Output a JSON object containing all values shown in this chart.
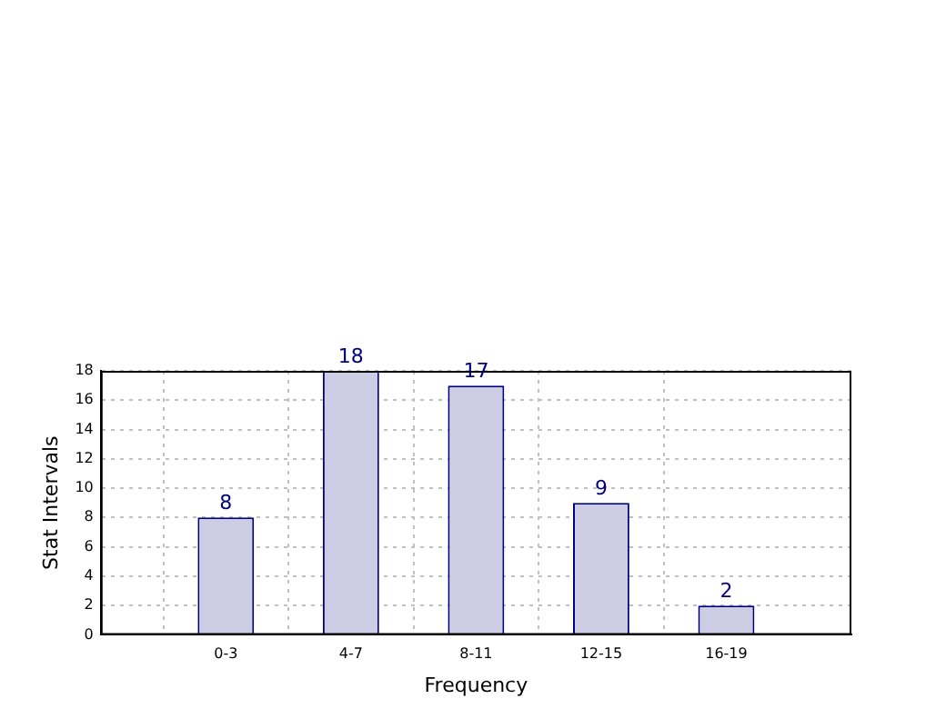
{
  "chart_data": {
    "type": "bar",
    "xlabel": "Frequency",
    "ylabel": "Stat Intervals",
    "categories": [
      "0-3",
      "4-7",
      "8-11",
      "12-15",
      "16-19"
    ],
    "values": [
      8,
      18,
      17,
      9,
      2
    ],
    "color": "#cccce4",
    "ylim": [
      0,
      18
    ],
    "yticks": [
      0,
      2,
      4,
      6,
      8,
      10,
      12,
      14,
      16,
      18
    ],
    "grid": true,
    "data_labels": true
  }
}
